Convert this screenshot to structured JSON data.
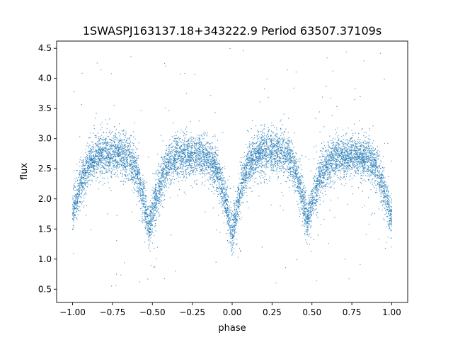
{
  "chart_data": {
    "type": "scatter",
    "title": "1SWASPJ163137.18+343222.9 Period 63507.37109s",
    "xlabel": "phase",
    "ylabel": "flux",
    "xlim": [
      -1.1,
      1.1
    ],
    "ylim": [
      0.28,
      4.62
    ],
    "xticks": [
      -1.0,
      -0.75,
      -0.5,
      -0.25,
      0.0,
      0.25,
      0.5,
      0.75,
      1.0
    ],
    "xtick_labels": [
      "−1.00",
      "−0.75",
      "−0.50",
      "−0.25",
      "0.00",
      "0.25",
      "0.50",
      "0.75",
      "1.00"
    ],
    "yticks": [
      0.5,
      1.0,
      1.5,
      2.0,
      2.5,
      3.0,
      3.5,
      4.0,
      4.5
    ],
    "ytick_labels": [
      "0.5",
      "1.0",
      "1.5",
      "2.0",
      "2.5",
      "3.0",
      "3.5",
      "4.0",
      "4.5"
    ],
    "grid": false,
    "legend": "none",
    "marker_color": "#1f77b4",
    "series": [
      {
        "x_range": [
          -1.0,
          1.0
        ],
        "light_curve_trend": {
          "phase": [
            -1.0,
            -0.75,
            -0.52,
            -0.25,
            0.0,
            0.25,
            0.47,
            0.75,
            1.0
          ],
          "flux": [
            1.75,
            2.75,
            1.5,
            2.72,
            1.4,
            2.78,
            1.62,
            2.72,
            1.65
          ]
        }
      }
    ]
  }
}
